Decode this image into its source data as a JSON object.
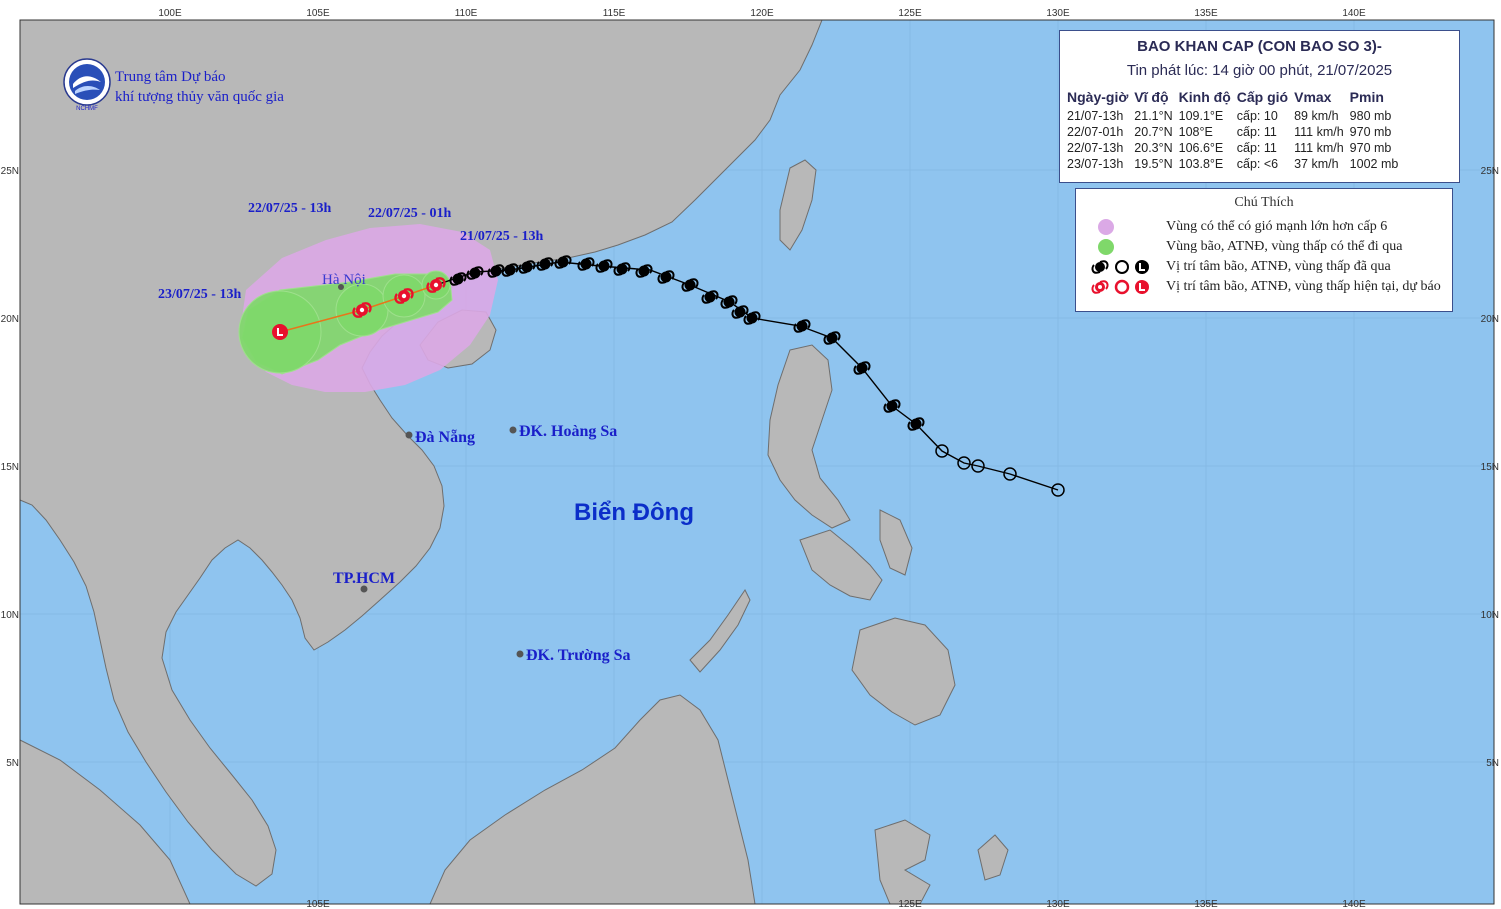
{
  "org": {
    "name_line1": "Trung tâm Dự báo",
    "name_line2": "khí tượng thủy văn quốc gia",
    "logo_text": "NCHMF"
  },
  "axes": {
    "lon_top": [
      "100E",
      "105E",
      "110E",
      "115E",
      "120E",
      "125E",
      "130E",
      "135E",
      "140E"
    ],
    "lon_bottom": [
      "105E",
      "125E",
      "130E",
      "135E",
      "140E"
    ],
    "lat_left": [
      "25N",
      "20N",
      "15N",
      "10N",
      "5N"
    ],
    "lat_right": [
      "25N",
      "20N",
      "15N",
      "10N",
      "5N"
    ]
  },
  "places": {
    "sea": "Biển Đông",
    "hanoi": "Hà Nội",
    "danang": "Đà Nẵng",
    "hoangsa": "ĐK. Hoàng Sa",
    "hcm": "TP.HCM",
    "truongsa": "ĐK. Trường Sa"
  },
  "forecast_labels": {
    "t0": "21/07/25 - 13h",
    "t12": "22/07/25 - 01h",
    "t24": "22/07/25 - 13h",
    "t48": "23/07/25 - 13h"
  },
  "bulletin": {
    "title": "BAO KHAN CAP (CON BAO SO 3)-",
    "issued": "Tin phát lúc: 14 giờ 00 phút, 21/07/2025",
    "headers": [
      "Ngày-giờ",
      "Vĩ độ",
      "Kinh độ",
      "Cấp gió",
      "Vmax",
      "Pmin"
    ],
    "rows": [
      [
        "21/07-13h",
        "21.1°N",
        "109.1°E",
        "cấp: 10",
        "89 km/h",
        "980 mb"
      ],
      [
        "22/07-01h",
        "20.7°N",
        "108°E",
        "cấp: 11",
        "111 km/h",
        "970 mb"
      ],
      [
        "22/07-13h",
        "20.3°N",
        "106.6°E",
        "cấp: 11",
        "111 km/h",
        "970 mb"
      ],
      [
        "23/07-13h",
        "19.5°N",
        "103.8°E",
        "cấp: <6",
        "37 km/h",
        "1002 mb"
      ]
    ]
  },
  "legend": {
    "title": "Chú Thích",
    "items": [
      "Vùng có thể có gió mạnh lớn hơn cấp 6",
      "Vùng bão, ATNĐ, vùng thấp có thể đi qua",
      "Vị trí tâm bão, ATNĐ, vùng thấp đã qua",
      "Vị trí tâm bão, ATNĐ, vùng thấp hiện tại, dự báo"
    ]
  },
  "colors": {
    "sea": "#8fc4ef",
    "land": "#b8b8b8",
    "strong_wind_zone": "#dba9e6",
    "storm_zone": "#7fd86a",
    "past_track": "#000000",
    "forecast_symbol": "#e8112d",
    "label_blue": "#1a1fc9"
  }
}
